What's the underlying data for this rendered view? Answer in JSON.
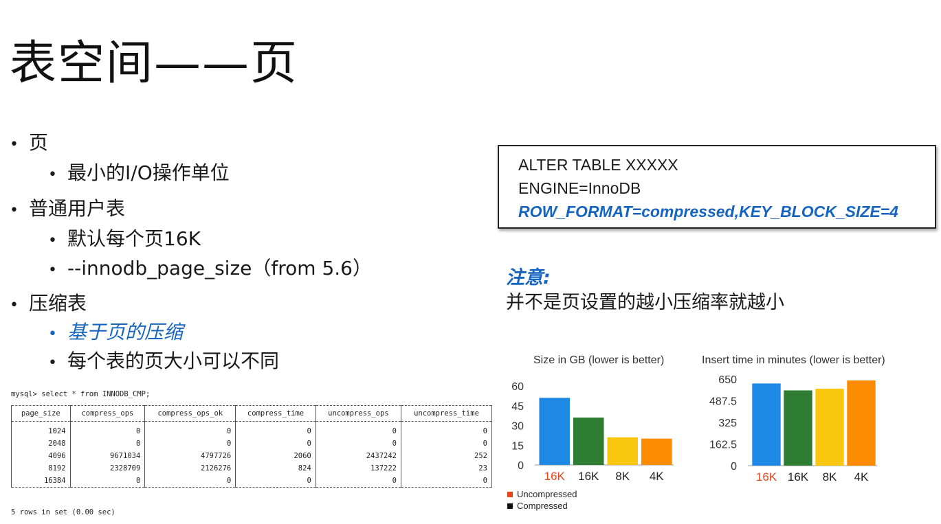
{
  "title": "表空间——页",
  "bullets": [
    {
      "level": 1,
      "text": "页"
    },
    {
      "level": 2,
      "text": "最小的I/O操作单位"
    },
    {
      "level": 1,
      "text": "普通用户表"
    },
    {
      "level": 2,
      "text": "默认每个页16K"
    },
    {
      "level": 2,
      "text": "--innodb_page_size（from 5.6）"
    },
    {
      "level": 1,
      "text": "压缩表"
    },
    {
      "level": 2,
      "text": "基于页的压缩",
      "highlight": true
    },
    {
      "level": 2,
      "text": "每个表的页大小可以不同"
    }
  ],
  "code_box": {
    "line1": "ALTER TABLE XXXXX",
    "line2": "ENGINE=InnoDB",
    "line3": "ROW_FORMAT=compressed,KEY_BLOCK_SIZE=4"
  },
  "note": {
    "label": "注意:",
    "text": "并不是页设置的越小压缩率就越小"
  },
  "mysql": {
    "command": "mysql> select * from INNODB_CMP;",
    "columns": [
      "page_size",
      "compress_ops",
      "compress_ops_ok",
      "compress_time",
      "uncompress_ops",
      "uncompress_time"
    ],
    "rows": [
      [
        "1024",
        "0",
        "0",
        "0",
        "0",
        "0"
      ],
      [
        "2048",
        "0",
        "0",
        "0",
        "0",
        "0"
      ],
      [
        "4096",
        "9671034",
        "4797726",
        "2060",
        "2437242",
        "252"
      ],
      [
        "8192",
        "2328709",
        "2126276",
        "824",
        "137222",
        "23"
      ],
      [
        "16384",
        "0",
        "0",
        "0",
        "0",
        "0"
      ]
    ],
    "footer": "5 rows in set (0.00 sec)"
  },
  "chart_data": [
    {
      "type": "bar",
      "title": "Size in GB (lower is better)",
      "categories": [
        "16K",
        "16K",
        "8K",
        "4K"
      ],
      "values": [
        51,
        36,
        21,
        20
      ],
      "yticks": [
        "60",
        "45",
        "30",
        "15",
        "0"
      ],
      "ylim": [
        0,
        60
      ],
      "colors": [
        "#1e88e5",
        "#2e7d32",
        "#f9c80e",
        "#fb8c00"
      ],
      "label_colors": [
        "#e8451a",
        "#222222",
        "#222222",
        "#222222"
      ]
    },
    {
      "type": "bar",
      "title": "Insert time in minutes (lower is better)",
      "categories": [
        "16K",
        "16K",
        "8K",
        "4K"
      ],
      "values": [
        617,
        565,
        578,
        640
      ],
      "yticks": [
        "650",
        "487.5",
        "325",
        "162.5",
        "0"
      ],
      "ylim": [
        0,
        650
      ],
      "colors": [
        "#1e88e5",
        "#2e7d32",
        "#f9c80e",
        "#fb8c00"
      ],
      "label_colors": [
        "#e8451a",
        "#222222",
        "#222222",
        "#222222"
      ]
    }
  ],
  "legend": [
    {
      "label": "Uncompressed",
      "color": "#e8451a"
    },
    {
      "label": "Compressed",
      "color": "#111111"
    }
  ]
}
